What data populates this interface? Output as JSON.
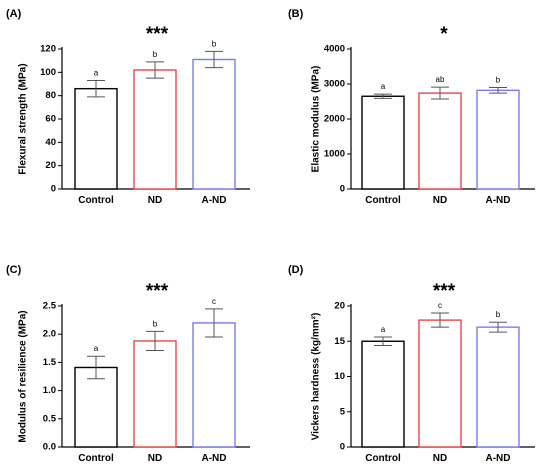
{
  "chart_data": [
    {
      "type": "bar",
      "panel_label": "(A)",
      "significance": "***",
      "categories": [
        "Control",
        "ND",
        "A-ND"
      ],
      "values": [
        86,
        102,
        111
      ],
      "errors": [
        7,
        7,
        7
      ],
      "letters": [
        "a",
        "b",
        "b"
      ],
      "colors": [
        "#000000",
        "#e8484d",
        "#7c7cf0"
      ],
      "ylabel": "Flexural strength (MPa)",
      "ylim": [
        0,
        120
      ],
      "yticks": [
        0,
        20,
        40,
        60,
        80,
        100,
        120
      ],
      "ytick_labels": [
        "0",
        "20",
        "40",
        "60",
        "80",
        "100",
        "120"
      ]
    },
    {
      "type": "bar",
      "panel_label": "(B)",
      "significance": "*",
      "categories": [
        "Control",
        "ND",
        "A-ND"
      ],
      "values": [
        2650,
        2740,
        2820
      ],
      "errors": [
        60,
        170,
        80
      ],
      "letters": [
        "a",
        "ab",
        "b"
      ],
      "colors": [
        "#000000",
        "#e8484d",
        "#7c7cf0"
      ],
      "ylabel": "Elastic modulus (MPa)",
      "ylim": [
        0,
        4000
      ],
      "yticks": [
        0,
        1000,
        2000,
        3000,
        4000
      ],
      "ytick_labels": [
        "0",
        "1000",
        "2000",
        "3000",
        "4000"
      ]
    },
    {
      "type": "bar",
      "panel_label": "(C)",
      "significance": "***",
      "categories": [
        "Control",
        "ND",
        "A-ND"
      ],
      "values": [
        1.41,
        1.88,
        2.2
      ],
      "errors": [
        0.2,
        0.17,
        0.25
      ],
      "letters": [
        "a",
        "b",
        "c"
      ],
      "colors": [
        "#000000",
        "#e8484d",
        "#7c7cf0"
      ],
      "ylabel": "Modulus of resilience (MPa)",
      "ylim": [
        0,
        2.5
      ],
      "yticks": [
        0,
        0.5,
        1,
        1.5,
        2,
        2.5
      ],
      "ytick_labels": [
        "0.0",
        "0.5",
        "1.0",
        "1.5",
        "2.0",
        "2.5"
      ]
    },
    {
      "type": "bar",
      "panel_label": "(D)",
      "significance": "***",
      "categories": [
        "Control",
        "ND",
        "A-ND"
      ],
      "values": [
        15,
        18,
        17
      ],
      "errors": [
        0.6,
        1.0,
        0.7
      ],
      "letters": [
        "a",
        "c",
        "b"
      ],
      "colors": [
        "#000000",
        "#e8484d",
        "#7c7cf0"
      ],
      "ylabel": "Vickers hardness (kg/mm²)",
      "ylim": [
        0,
        20
      ],
      "yticks": [
        0,
        5,
        10,
        15,
        20
      ],
      "ytick_labels": [
        "0",
        "5",
        "10",
        "15",
        "20"
      ]
    }
  ]
}
